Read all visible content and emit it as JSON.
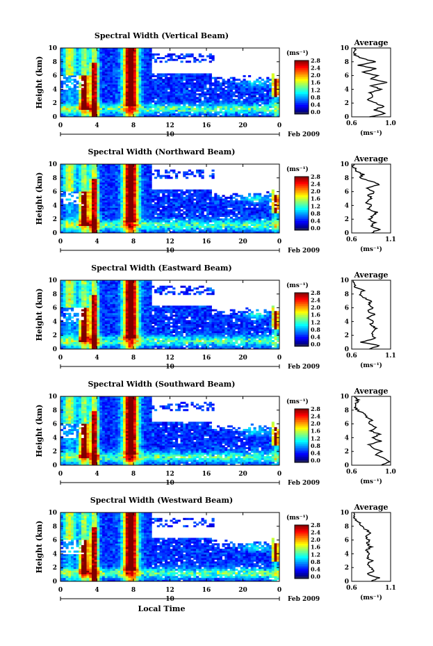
{
  "figure": {
    "xlabel": "Local Time",
    "date_label": "Feb 2009",
    "day_label": "10"
  },
  "chart_data": [
    {
      "type": "heatmap",
      "title": "Spectral Width (Vertical Beam)",
      "xlabel": "",
      "ylabel": "Height (km)",
      "xlim": [
        0,
        24
      ],
      "ylim": [
        0,
        10
      ],
      "x_ticks": [
        "0",
        "4",
        "8",
        "12",
        "16",
        "20",
        "0"
      ],
      "y_ticks": [
        "0",
        "2",
        "4",
        "6",
        "8",
        "10"
      ],
      "colorbar": {
        "label": "(ms⁻¹)",
        "range": [
          0,
          2.8
        ],
        "ticks": [
          "0.0",
          "0.4",
          "0.8",
          "1.2",
          "1.6",
          "2.0",
          "2.4",
          "2.8"
        ]
      },
      "profile": {
        "title": "Average",
        "xlabel": "(ms⁻¹)",
        "xlim": [
          0.6,
          1.0
        ],
        "x_ticks": [
          "0.6",
          "1.0"
        ],
        "y_ticks": [
          "0",
          "2",
          "4",
          "6",
          "8",
          "10"
        ],
        "heights": [
          0,
          0.5,
          1,
          1.5,
          2,
          2.5,
          3,
          3.5,
          4,
          4.5,
          5,
          5.5,
          6,
          6.5,
          7,
          7.5,
          8,
          8.5,
          9,
          9.5,
          10
        ],
        "values": [
          0.78,
          0.95,
          0.82,
          0.93,
          0.85,
          0.75,
          0.82,
          0.78,
          0.9,
          0.8,
          0.95,
          0.8,
          0.86,
          0.72,
          0.85,
          0.66,
          0.84,
          0.7,
          0.63,
          0.62,
          0.65
        ]
      }
    },
    {
      "type": "heatmap",
      "title": "Spectral Width (Northward Beam)",
      "xlabel": "",
      "ylabel": "Height (km)",
      "xlim": [
        0,
        24
      ],
      "ylim": [
        0,
        10
      ],
      "x_ticks": [
        "0",
        "4",
        "8",
        "12",
        "16",
        "20",
        "0"
      ],
      "y_ticks": [
        "0",
        "2",
        "4",
        "6",
        "8",
        "10"
      ],
      "colorbar": {
        "label": "(ms⁻¹)",
        "range": [
          0,
          2.8
        ],
        "ticks": [
          "0.0",
          "0.4",
          "0.8",
          "1.2",
          "1.6",
          "2.0",
          "2.4",
          "2.8"
        ]
      },
      "profile": {
        "title": "Average",
        "xlabel": "(ms⁻¹)",
        "xlim": [
          0.6,
          1.1
        ],
        "x_ticks": [
          "0.6",
          "1.1"
        ],
        "y_ticks": [
          "0",
          "2",
          "4",
          "6",
          "8",
          "10"
        ],
        "heights": [
          0,
          0.5,
          1,
          1.5,
          2,
          2.5,
          3,
          3.5,
          4,
          4.5,
          5,
          5.5,
          6,
          6.5,
          7,
          7.5,
          8,
          8.5,
          9,
          9.5,
          10
        ],
        "values": [
          0.85,
          0.95,
          0.85,
          0.9,
          0.82,
          0.88,
          0.92,
          0.8,
          0.85,
          0.78,
          0.85,
          0.82,
          0.9,
          0.78,
          0.95,
          0.85,
          0.7,
          0.75,
          0.66,
          0.63,
          0.62
        ]
      }
    },
    {
      "type": "heatmap",
      "title": "Spectral Width (Eastward Beam)",
      "xlabel": "",
      "ylabel": "Height (km)",
      "xlim": [
        0,
        24
      ],
      "ylim": [
        0,
        10
      ],
      "x_ticks": [
        "0",
        "4",
        "8",
        "12",
        "16",
        "20",
        "0"
      ],
      "y_ticks": [
        "0",
        "2",
        "4",
        "6",
        "8",
        "10"
      ],
      "colorbar": {
        "label": "(ms⁻¹)",
        "range": [
          0,
          2.8
        ],
        "ticks": [
          "0.0",
          "0.4",
          "0.8",
          "1.2",
          "1.6",
          "2.0",
          "2.4",
          "2.8"
        ]
      },
      "profile": {
        "title": "Average",
        "xlabel": "(ms⁻¹)",
        "xlim": [
          0.6,
          1.1
        ],
        "x_ticks": [
          "0.6",
          "1.1"
        ],
        "y_ticks": [
          "0",
          "2",
          "4",
          "6",
          "8",
          "10"
        ],
        "heights": [
          0,
          0.5,
          1,
          1.5,
          2,
          2.5,
          3,
          3.5,
          4,
          4.5,
          5,
          5.5,
          6,
          6.5,
          7,
          7.5,
          8,
          8.5,
          9,
          9.5,
          10
        ],
        "values": [
          0.82,
          0.95,
          0.72,
          0.9,
          0.88,
          0.86,
          0.92,
          0.84,
          0.88,
          0.8,
          0.9,
          0.8,
          0.88,
          0.82,
          0.85,
          0.74,
          0.7,
          0.75,
          0.65,
          0.63,
          0.62
        ]
      }
    },
    {
      "type": "heatmap",
      "title": "Spectral Width (Southward Beam)",
      "xlabel": "",
      "ylabel": "Height (km)",
      "xlim": [
        0,
        24
      ],
      "ylim": [
        0,
        10
      ],
      "x_ticks": [
        "0",
        "4",
        "8",
        "12",
        "16",
        "20",
        "0"
      ],
      "y_ticks": [
        "0",
        "2",
        "4",
        "6",
        "8",
        "10"
      ],
      "colorbar": {
        "label": "(ms⁻¹)",
        "range": [
          0,
          2.8
        ],
        "ticks": [
          "0.0",
          "0.4",
          "0.8",
          "1.2",
          "1.6",
          "2.0",
          "2.4",
          "2.8"
        ]
      },
      "profile": {
        "title": "Average",
        "xlabel": "(ms⁻¹)",
        "xlim": [
          0.6,
          1.0
        ],
        "x_ticks": [
          "0.6",
          "1.0"
        ],
        "y_ticks": [
          "0",
          "2",
          "4",
          "6",
          "8",
          "10"
        ],
        "heights": [
          0,
          0.5,
          1,
          1.5,
          2,
          2.5,
          3,
          3.5,
          4,
          4.5,
          5,
          5.5,
          6,
          6.5,
          7,
          7.5,
          8,
          8.5,
          9,
          9.5,
          10
        ],
        "values": [
          0.9,
          1.0,
          0.95,
          0.85,
          0.9,
          0.83,
          0.78,
          0.9,
          0.82,
          0.88,
          0.8,
          0.85,
          0.78,
          0.8,
          0.75,
          0.72,
          0.66,
          0.63,
          0.65,
          0.66,
          0.64
        ]
      }
    },
    {
      "type": "heatmap",
      "title": "Spectral Width (Westward Beam)",
      "xlabel": "",
      "ylabel": "Height (km)",
      "xlim": [
        0,
        24
      ],
      "ylim": [
        0,
        10
      ],
      "x_ticks": [
        "0",
        "4",
        "8",
        "12",
        "16",
        "20",
        "0"
      ],
      "y_ticks": [
        "0",
        "2",
        "4",
        "6",
        "8",
        "10"
      ],
      "colorbar": {
        "label": "(ms⁻¹)",
        "range": [
          0,
          2.8
        ],
        "ticks": [
          "0.0",
          "0.4",
          "0.8",
          "1.2",
          "1.6",
          "2.0",
          "2.4",
          "2.8"
        ]
      },
      "profile": {
        "title": "Average",
        "xlabel": "(ms⁻¹)",
        "xlim": [
          0.6,
          1.1
        ],
        "x_ticks": [
          "0.6",
          "1.1"
        ],
        "y_ticks": [
          "0",
          "2",
          "4",
          "6",
          "8",
          "10"
        ],
        "heights": [
          0,
          0.5,
          1,
          1.5,
          2,
          2.5,
          3,
          3.5,
          4,
          4.5,
          5,
          5.5,
          6,
          6.5,
          7,
          7.5,
          8,
          8.5,
          9,
          9.5,
          10
        ],
        "values": [
          0.85,
          0.95,
          0.8,
          0.88,
          0.84,
          0.8,
          0.86,
          0.8,
          0.84,
          0.78,
          0.85,
          0.8,
          0.82,
          0.78,
          0.85,
          0.78,
          0.72,
          0.7,
          0.64,
          0.63,
          0.62
        ]
      }
    }
  ]
}
